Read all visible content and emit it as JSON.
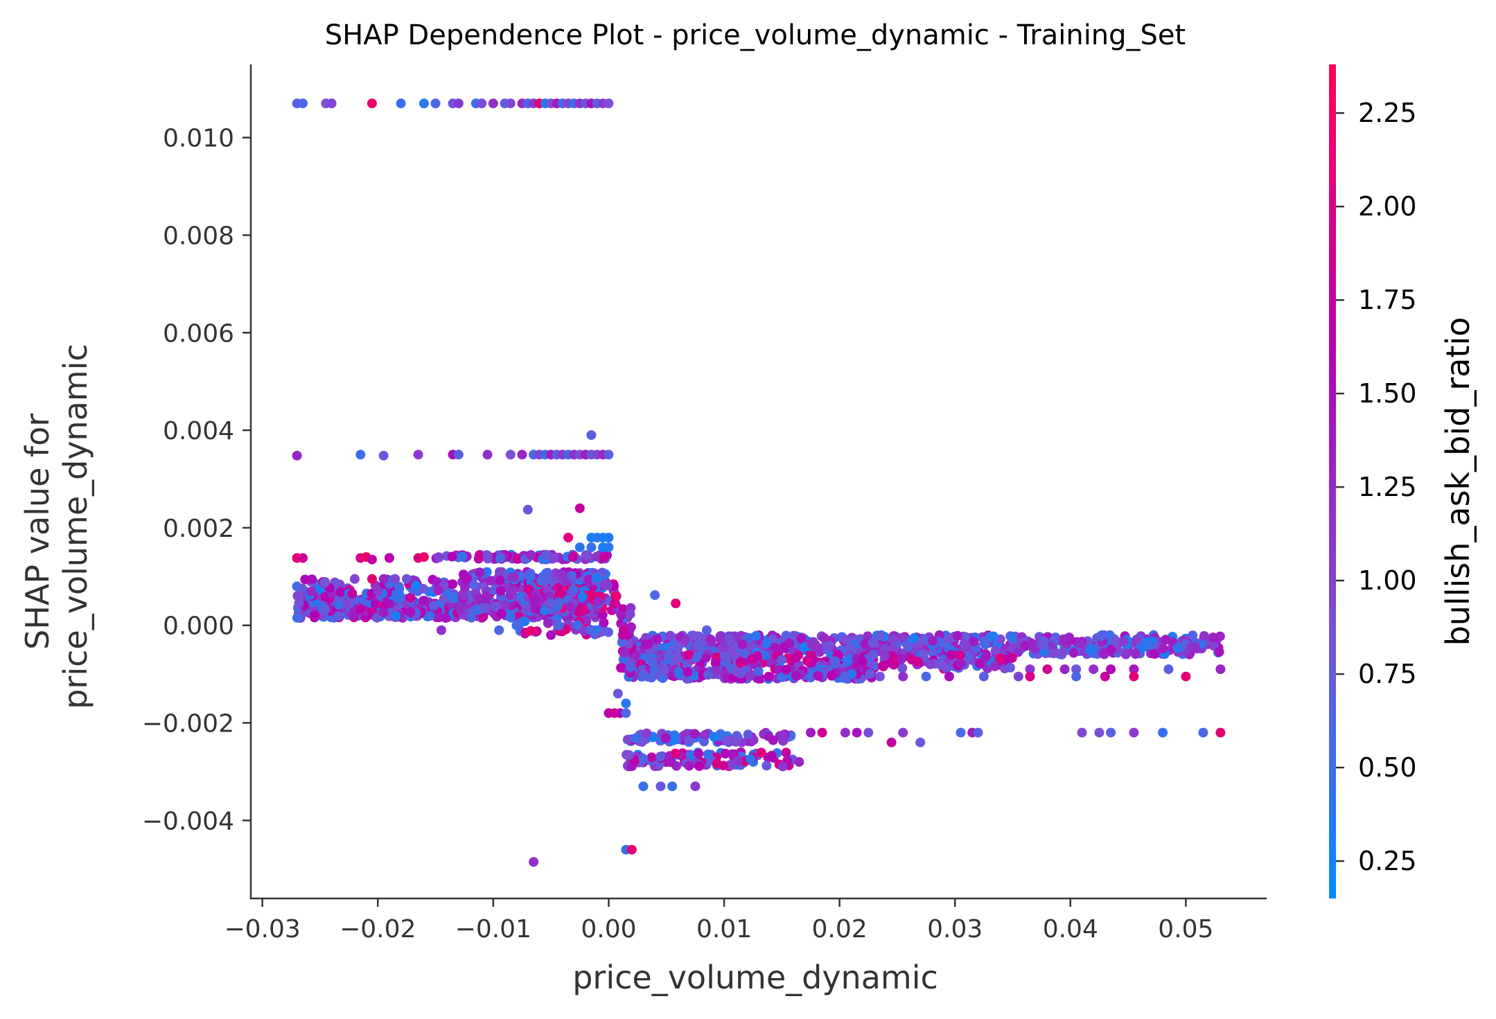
{
  "chart_data": {
    "type": "scatter",
    "title": "SHAP Dependence Plot - price_volume_dynamic - Training_Set",
    "xlabel": "price_volume_dynamic",
    "ylabel": [
      "SHAP value for",
      "price_volume_dynamic"
    ],
    "xlim": [
      -0.031,
      0.057
    ],
    "ylim": [
      -0.0056,
      0.0115
    ],
    "xticks": [
      {
        "value": -0.03,
        "label": "−0.03"
      },
      {
        "value": -0.02,
        "label": "−0.02"
      },
      {
        "value": -0.01,
        "label": "−0.01"
      },
      {
        "value": 0.0,
        "label": "0.00"
      },
      {
        "value": 0.01,
        "label": "0.01"
      },
      {
        "value": 0.02,
        "label": "0.02"
      },
      {
        "value": 0.03,
        "label": "0.03"
      },
      {
        "value": 0.04,
        "label": "0.04"
      },
      {
        "value": 0.05,
        "label": "0.05"
      }
    ],
    "yticks": [
      {
        "value": 0.01,
        "label": "0.010"
      },
      {
        "value": 0.008,
        "label": "0.008"
      },
      {
        "value": 0.006,
        "label": "0.006"
      },
      {
        "value": 0.004,
        "label": "0.004"
      },
      {
        "value": 0.002,
        "label": "0.002"
      },
      {
        "value": 0.0,
        "label": "0.000"
      },
      {
        "value": -0.002,
        "label": "−0.002"
      },
      {
        "value": -0.004,
        "label": "−0.004"
      }
    ],
    "grid": false,
    "colorbar": {
      "label": "bullish_ask_bid_ratio",
      "range": [
        0.15,
        2.38
      ],
      "ticks": [
        {
          "value": 0.25,
          "label": "0.25"
        },
        {
          "value": 0.5,
          "label": "0.50"
        },
        {
          "value": 0.75,
          "label": "0.75"
        },
        {
          "value": 1.0,
          "label": "1.00"
        },
        {
          "value": 1.25,
          "label": "1.25"
        },
        {
          "value": 1.5,
          "label": "1.50"
        },
        {
          "value": 1.75,
          "label": "1.75"
        },
        {
          "value": 2.0,
          "label": "2.00"
        },
        {
          "value": 2.25,
          "label": "2.25"
        }
      ],
      "colors": [
        "#008bfb",
        "#7a4fd8",
        "#b400b4",
        "#ff0052"
      ]
    },
    "clusters": [
      {
        "x": [
          -0.027,
          -0.0005
        ],
        "y": [
          0.00015,
          0.00055
        ],
        "n": 520,
        "c": [
          0.3,
          1.9
        ]
      },
      {
        "x": [
          -0.027,
          -0.0005
        ],
        "y": [
          0.00055,
          0.00095
        ],
        "n": 180,
        "c": [
          0.3,
          1.9
        ]
      },
      {
        "x": [
          -0.007,
          0.0008
        ],
        "y": [
          0.0003,
          0.0009
        ],
        "n": 120,
        "c": [
          0.3,
          2.2
        ]
      },
      {
        "x": [
          -0.013,
          0.0
        ],
        "y": [
          0.0009,
          0.0011
        ],
        "n": 80,
        "c": [
          0.3,
          1.6
        ]
      },
      {
        "x": [
          -0.015,
          0.0
        ],
        "y": [
          0.00135,
          0.00145
        ],
        "n": 90,
        "c": [
          0.4,
          1.9
        ]
      },
      {
        "x": [
          -0.008,
          0.0
        ],
        "y": [
          -0.0002,
          0.0001
        ],
        "n": 40,
        "c": [
          0.3,
          2.2
        ]
      },
      {
        "x": [
          0.0015,
          0.053
        ],
        "y": [
          -0.0006,
          -0.0002
        ],
        "n": 650,
        "c": [
          0.3,
          1.5
        ]
      },
      {
        "x": [
          0.0015,
          0.035
        ],
        "y": [
          -0.0009,
          -0.0006
        ],
        "n": 260,
        "c": [
          0.4,
          2.1
        ]
      },
      {
        "x": [
          0.0015,
          0.023
        ],
        "y": [
          -0.0011,
          -0.0009
        ],
        "n": 160,
        "c": [
          0.4,
          1.7
        ]
      },
      {
        "x": [
          0.001,
          0.002
        ],
        "y": [
          -0.001,
          0.0004
        ],
        "n": 40,
        "c": [
          0.3,
          2.0
        ]
      },
      {
        "x": [
          0.0015,
          0.016
        ],
        "y": [
          -0.0024,
          -0.0022
        ],
        "n": 90,
        "c": [
          0.3,
          1.6
        ]
      },
      {
        "x": [
          0.0015,
          0.016
        ],
        "y": [
          -0.0029,
          -0.0026
        ],
        "n": 110,
        "c": [
          0.3,
          2.1
        ]
      }
    ],
    "points": [
      {
        "x": -0.027,
        "y": 0.0107,
        "c": 0.7
      },
      {
        "x": -0.0265,
        "y": 0.0107,
        "c": 0.6
      },
      {
        "x": -0.0245,
        "y": 0.0107,
        "c": 0.9
      },
      {
        "x": -0.024,
        "y": 0.0107,
        "c": 1.0
      },
      {
        "x": -0.0205,
        "y": 0.0107,
        "c": 2.2
      },
      {
        "x": -0.018,
        "y": 0.0107,
        "c": 0.5
      },
      {
        "x": -0.016,
        "y": 0.0107,
        "c": 0.4
      },
      {
        "x": -0.015,
        "y": 0.0107,
        "c": 0.6
      },
      {
        "x": -0.0135,
        "y": 0.0107,
        "c": 0.8
      },
      {
        "x": -0.013,
        "y": 0.0107,
        "c": 1.1
      },
      {
        "x": -0.0115,
        "y": 0.0107,
        "c": 0.5
      },
      {
        "x": -0.011,
        "y": 0.0107,
        "c": 0.9
      },
      {
        "x": -0.01,
        "y": 0.0107,
        "c": 1.2
      },
      {
        "x": -0.009,
        "y": 0.0107,
        "c": 0.7
      },
      {
        "x": -0.0085,
        "y": 0.0107,
        "c": 1.0
      },
      {
        "x": -0.0075,
        "y": 0.0107,
        "c": 1.3
      },
      {
        "x": -0.007,
        "y": 0.0107,
        "c": 0.6
      },
      {
        "x": -0.0065,
        "y": 0.0107,
        "c": 1.1
      },
      {
        "x": -0.006,
        "y": 0.0107,
        "c": 2.1
      },
      {
        "x": -0.0055,
        "y": 0.0107,
        "c": 0.4
      },
      {
        "x": -0.005,
        "y": 0.0107,
        "c": 0.9
      },
      {
        "x": -0.0045,
        "y": 0.0107,
        "c": 1.4
      },
      {
        "x": -0.004,
        "y": 0.0107,
        "c": 0.6
      },
      {
        "x": -0.0035,
        "y": 0.0107,
        "c": 1.0
      },
      {
        "x": -0.003,
        "y": 0.0107,
        "c": 0.5
      },
      {
        "x": -0.0025,
        "y": 0.0107,
        "c": 1.2
      },
      {
        "x": -0.002,
        "y": 0.0107,
        "c": 0.8
      },
      {
        "x": -0.0015,
        "y": 0.0107,
        "c": 1.5
      },
      {
        "x": -0.001,
        "y": 0.0107,
        "c": 0.7
      },
      {
        "x": -0.0005,
        "y": 0.0107,
        "c": 1.1
      },
      {
        "x": 0.0,
        "y": 0.0107,
        "c": 0.9
      },
      {
        "x": -0.027,
        "y": 0.00348,
        "c": 1.3
      },
      {
        "x": -0.0215,
        "y": 0.0035,
        "c": 0.5
      },
      {
        "x": -0.0195,
        "y": 0.00348,
        "c": 0.8
      },
      {
        "x": -0.0165,
        "y": 0.0035,
        "c": 1.1
      },
      {
        "x": -0.0135,
        "y": 0.0035,
        "c": 1.5
      },
      {
        "x": -0.013,
        "y": 0.0035,
        "c": 0.7
      },
      {
        "x": -0.0105,
        "y": 0.0035,
        "c": 1.2
      },
      {
        "x": -0.0085,
        "y": 0.0035,
        "c": 0.9
      },
      {
        "x": -0.0075,
        "y": 0.0035,
        "c": 1.3
      },
      {
        "x": -0.0065,
        "y": 0.0035,
        "c": 0.6
      },
      {
        "x": -0.006,
        "y": 0.0035,
        "c": 1.0
      },
      {
        "x": -0.0055,
        "y": 0.0035,
        "c": 0.5
      },
      {
        "x": -0.005,
        "y": 0.0035,
        "c": 1.4
      },
      {
        "x": -0.0045,
        "y": 0.0035,
        "c": 0.7
      },
      {
        "x": -0.004,
        "y": 0.0035,
        "c": 1.1
      },
      {
        "x": -0.0035,
        "y": 0.0035,
        "c": 0.6
      },
      {
        "x": -0.003,
        "y": 0.0035,
        "c": 1.2
      },
      {
        "x": -0.0025,
        "y": 0.0035,
        "c": 0.9
      },
      {
        "x": -0.002,
        "y": 0.0035,
        "c": 1.4
      },
      {
        "x": -0.0015,
        "y": 0.0035,
        "c": 0.8
      },
      {
        "x": -0.001,
        "y": 0.0035,
        "c": 1.0
      },
      {
        "x": -0.0005,
        "y": 0.0035,
        "c": 1.3
      },
      {
        "x": 0.0,
        "y": 0.0035,
        "c": 0.7
      },
      {
        "x": -0.0015,
        "y": 0.0039,
        "c": 0.7
      },
      {
        "x": -0.007,
        "y": 0.00237,
        "c": 0.8
      },
      {
        "x": -0.0025,
        "y": 0.0024,
        "c": 1.8
      },
      {
        "x": -0.0035,
        "y": 0.0018,
        "c": 2.1
      },
      {
        "x": -0.0015,
        "y": 0.0018,
        "c": 0.3
      },
      {
        "x": -0.001,
        "y": 0.0018,
        "c": 0.4
      },
      {
        "x": -0.0005,
        "y": 0.0018,
        "c": 0.3
      },
      {
        "x": 0.0,
        "y": 0.0018,
        "c": 0.35
      },
      {
        "x": -0.0025,
        "y": 0.0016,
        "c": 0.4
      },
      {
        "x": -0.0015,
        "y": 0.0016,
        "c": 0.5
      },
      {
        "x": -0.0005,
        "y": 0.0016,
        "c": 0.3
      },
      {
        "x": 0.0,
        "y": 0.0016,
        "c": 0.4
      },
      {
        "x": -0.027,
        "y": 0.00138,
        "c": 2.1
      },
      {
        "x": -0.0265,
        "y": 0.00138,
        "c": 1.9
      },
      {
        "x": -0.0215,
        "y": 0.00138,
        "c": 2.0
      },
      {
        "x": -0.021,
        "y": 0.0014,
        "c": 2.2
      },
      {
        "x": -0.0205,
        "y": 0.00135,
        "c": 1.8
      },
      {
        "x": -0.019,
        "y": 0.00138,
        "c": 1.7
      },
      {
        "x": -0.0165,
        "y": 0.00138,
        "c": 2.0
      },
      {
        "x": -0.016,
        "y": 0.0014,
        "c": 2.2
      },
      {
        "x": -0.027,
        "y": 0.0008,
        "c": 0.6
      },
      {
        "x": -0.022,
        "y": 0.00095,
        "c": 1.0
      },
      {
        "x": -0.0205,
        "y": 0.00095,
        "c": 2.1
      },
      {
        "x": -0.0195,
        "y": 0.00095,
        "c": 1.3
      },
      {
        "x": -0.0185,
        "y": 0.00095,
        "c": 1.0
      },
      {
        "x": -0.0175,
        "y": 0.00095,
        "c": 0.8
      },
      {
        "x": -0.0145,
        "y": -0.0001,
        "c": 1.2
      },
      {
        "x": -0.0095,
        "y": -0.0001,
        "c": 0.6
      },
      {
        "x": -0.005,
        "y": -0.0002,
        "c": 1.5
      },
      {
        "x": 0.004,
        "y": 0.00062,
        "c": 0.6
      },
      {
        "x": 0.0058,
        "y": 0.00045,
        "c": 2.1
      },
      {
        "x": 0.0085,
        "y": -0.0001,
        "c": 0.7
      },
      {
        "x": 0.0,
        "y": -0.0018,
        "c": 1.7
      },
      {
        "x": 0.0005,
        "y": -0.0018,
        "c": 1.9
      },
      {
        "x": 0.001,
        "y": -0.0018,
        "c": 1.6
      },
      {
        "x": 0.0015,
        "y": -0.0018,
        "c": 0.6
      },
      {
        "x": 0.0015,
        "y": -0.0016,
        "c": 0.4
      },
      {
        "x": 0.0008,
        "y": -0.0014,
        "c": 0.8
      },
      {
        "x": 0.003,
        "y": -0.0033,
        "c": 0.5
      },
      {
        "x": 0.0045,
        "y": -0.0033,
        "c": 0.8
      },
      {
        "x": 0.0055,
        "y": -0.0033,
        "c": 0.5
      },
      {
        "x": 0.0075,
        "y": -0.0033,
        "c": 1.1
      },
      {
        "x": 0.0015,
        "y": -0.0046,
        "c": 0.5
      },
      {
        "x": 0.002,
        "y": -0.0046,
        "c": 2.1
      },
      {
        "x": -0.0065,
        "y": -0.00485,
        "c": 1.2
      },
      {
        "x": 0.0165,
        "y": -0.0028,
        "c": 1.3
      },
      {
        "x": 0.0175,
        "y": -0.0022,
        "c": 1.4
      },
      {
        "x": 0.0185,
        "y": -0.0022,
        "c": 1.9
      },
      {
        "x": 0.0205,
        "y": -0.0022,
        "c": 1.2
      },
      {
        "x": 0.0215,
        "y": -0.0022,
        "c": 1.5
      },
      {
        "x": 0.0225,
        "y": -0.0022,
        "c": 0.9
      },
      {
        "x": 0.0245,
        "y": -0.0024,
        "c": 1.8
      },
      {
        "x": 0.0255,
        "y": -0.0022,
        "c": 1.1
      },
      {
        "x": 0.027,
        "y": -0.0024,
        "c": 0.8
      },
      {
        "x": 0.0305,
        "y": -0.0022,
        "c": 0.6
      },
      {
        "x": 0.0315,
        "y": -0.0022,
        "c": 1.4
      },
      {
        "x": 0.032,
        "y": -0.0022,
        "c": 0.7
      },
      {
        "x": 0.041,
        "y": -0.0022,
        "c": 1.0
      },
      {
        "x": 0.0425,
        "y": -0.0022,
        "c": 0.9
      },
      {
        "x": 0.0435,
        "y": -0.0022,
        "c": 0.7
      },
      {
        "x": 0.0455,
        "y": -0.0022,
        "c": 1.1
      },
      {
        "x": 0.048,
        "y": -0.0022,
        "c": 0.5
      },
      {
        "x": 0.0515,
        "y": -0.0022,
        "c": 0.6
      },
      {
        "x": 0.053,
        "y": -0.0022,
        "c": 2.1
      },
      {
        "x": 0.0365,
        "y": -0.0009,
        "c": 1.1
      },
      {
        "x": 0.038,
        "y": -0.0009,
        "c": 1.9
      },
      {
        "x": 0.0395,
        "y": -0.0009,
        "c": 1.3
      },
      {
        "x": 0.0405,
        "y": -0.0009,
        "c": 0.8
      },
      {
        "x": 0.042,
        "y": -0.0009,
        "c": 1.2
      },
      {
        "x": 0.0435,
        "y": -0.0009,
        "c": 1.6
      },
      {
        "x": 0.0455,
        "y": -0.0009,
        "c": 1.4
      },
      {
        "x": 0.0485,
        "y": -0.0009,
        "c": 0.7
      },
      {
        "x": 0.05,
        "y": -0.00105,
        "c": 2.1
      },
      {
        "x": 0.053,
        "y": -0.0009,
        "c": 1.3
      },
      {
        "x": 0.0235,
        "y": -0.00105,
        "c": 0.9
      },
      {
        "x": 0.0255,
        "y": -0.00105,
        "c": 1.2
      },
      {
        "x": 0.0275,
        "y": -0.00105,
        "c": 0.6
      },
      {
        "x": 0.0295,
        "y": -0.00105,
        "c": 1.5
      },
      {
        "x": 0.0325,
        "y": -0.00105,
        "c": 0.7
      },
      {
        "x": 0.0355,
        "y": -0.00105,
        "c": 1.0
      },
      {
        "x": 0.0365,
        "y": -0.00105,
        "c": 2.0
      },
      {
        "x": 0.0405,
        "y": -0.00105,
        "c": 0.6
      },
      {
        "x": 0.043,
        "y": -0.00105,
        "c": 1.8
      },
      {
        "x": 0.0455,
        "y": -0.00105,
        "c": 2.1
      }
    ]
  }
}
